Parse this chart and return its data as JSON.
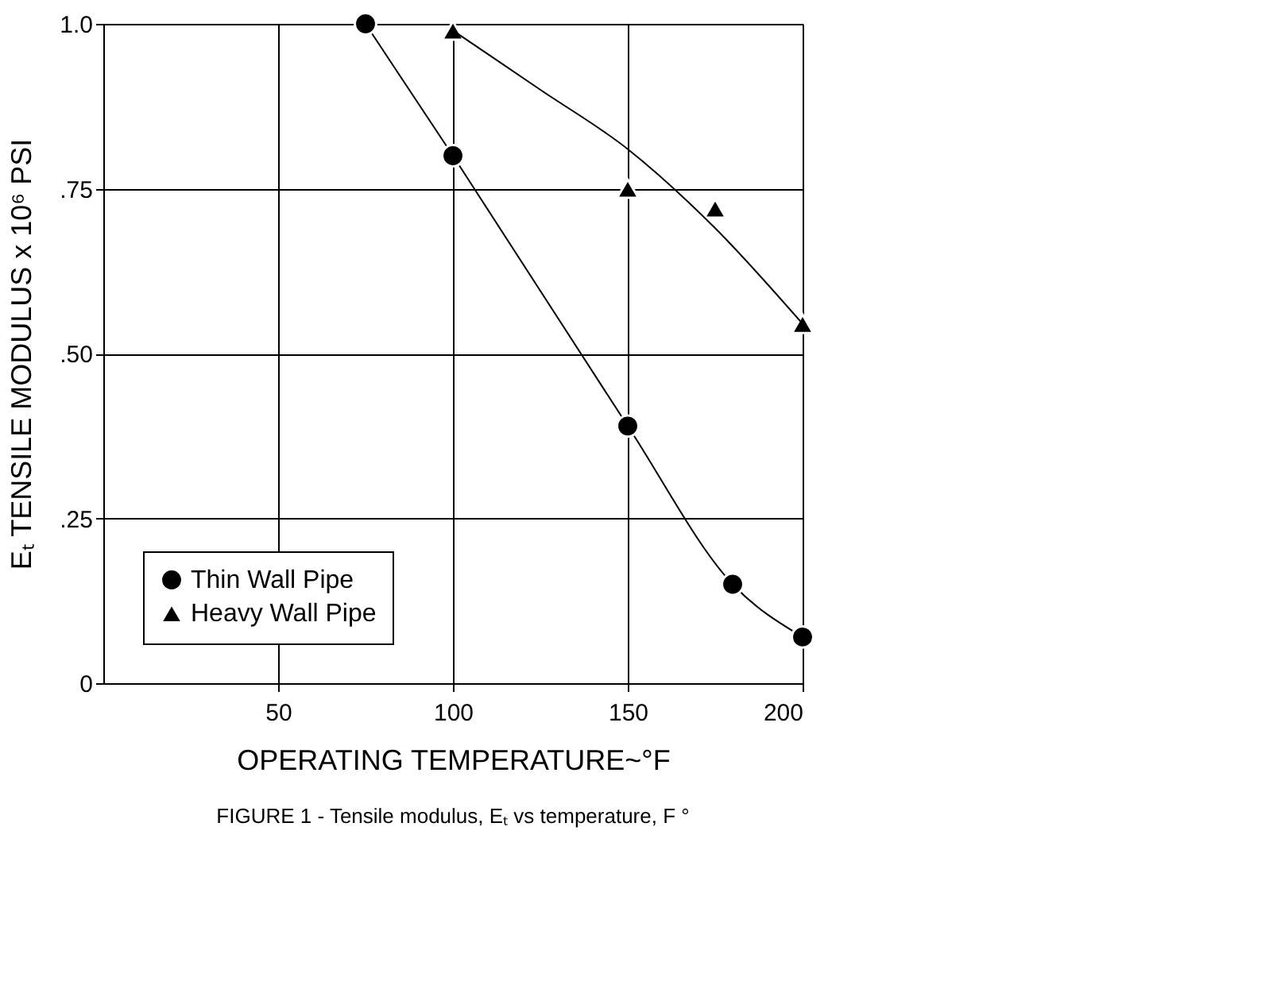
{
  "chart_data": {
    "type": "scatter",
    "xlabel": "OPERATING TEMPERATURE~°F",
    "ylabel": "Eₜ TENSILE MODULUS x 10⁶ PSI",
    "annotations": [
      "FIGURE 1 - Tensile modulus, Eₜ vs temperature, F °"
    ],
    "xlim": [
      0,
      200
    ],
    "xticks": [
      50,
      100,
      150,
      200
    ],
    "ylim": [
      0,
      1.0
    ],
    "yticks": [
      {
        "value": 0,
        "label": "0"
      },
      {
        "value": 0.25,
        "label": ".25"
      },
      {
        "value": 0.5,
        "label": ".50"
      },
      {
        "value": 0.75,
        "label": ".75"
      },
      {
        "value": 1.0,
        "label": "1.0"
      }
    ],
    "grid": true,
    "legend": "bottom left",
    "series": [
      {
        "name": "Thin Wall Pipe",
        "type": "line",
        "marker": "circle",
        "color": "#000000",
        "x": [
          75,
          100,
          150,
          180,
          200
        ],
        "values": [
          1.0,
          0.8,
          0.39,
          0.15,
          0.07
        ]
      },
      {
        "name": "Heavy Wall Pipe",
        "marker": "triangle",
        "color": "#000000",
        "x": [
          100,
          150,
          175,
          200
        ],
        "values": [
          0.99,
          0.75,
          0.72,
          0.545
        ]
      },
      {
        "type": "line",
        "marker": "none",
        "color": "#000000",
        "x": [
          100,
          125,
          150,
          175,
          200
        ],
        "values": [
          0.99,
          0.9,
          0.81,
          0.69,
          0.545
        ]
      }
    ]
  }
}
